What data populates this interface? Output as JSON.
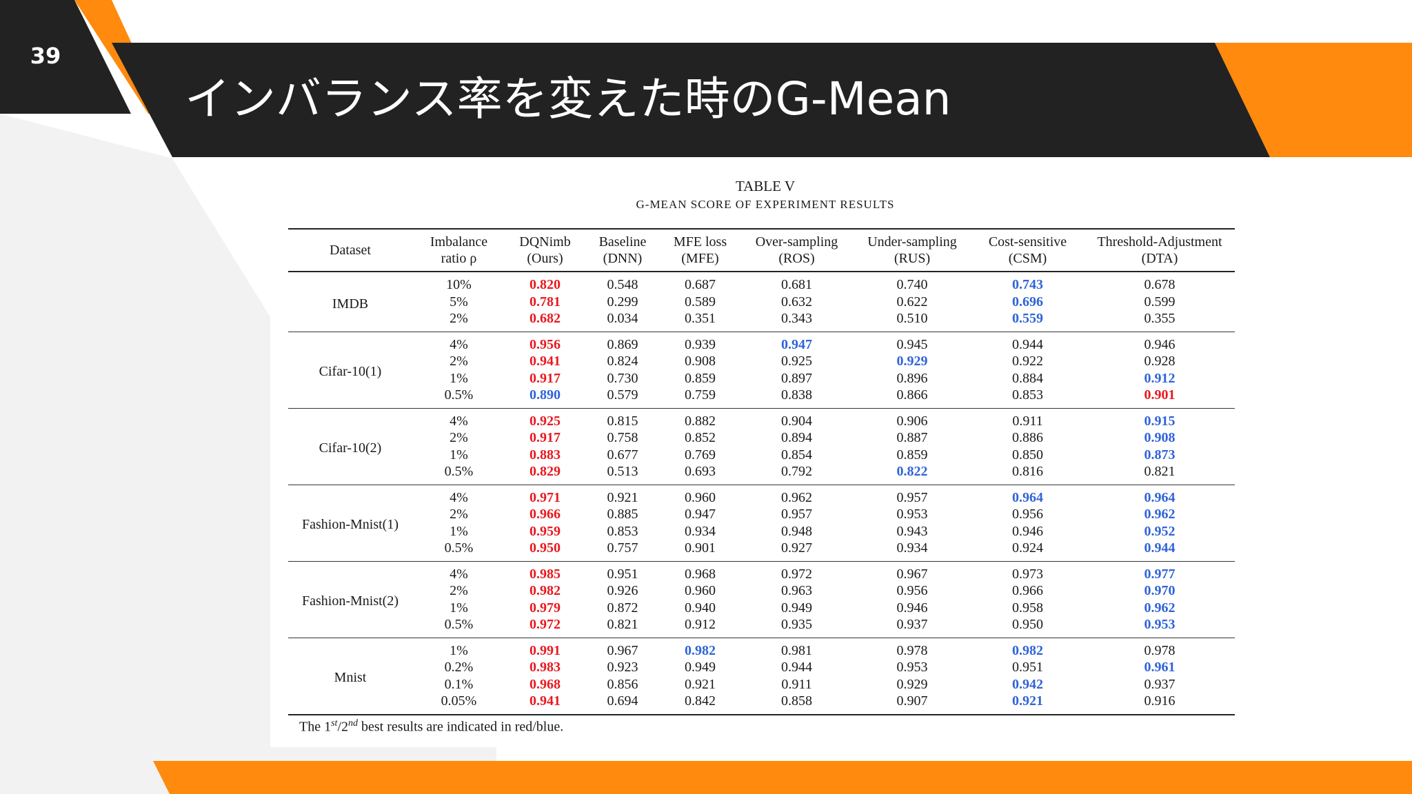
{
  "slide": {
    "page_number": "39",
    "title": "インバランス率を変えた時のG-Mean"
  },
  "colors": {
    "dark_band": "#222222",
    "accent_orange": "#ff8a0d",
    "panel_grey": "#f2f2f2",
    "best_red": "#e8191f",
    "second_blue": "#2f63d8"
  },
  "table": {
    "caption_line1": "TABLE V",
    "caption_line2": "G-MEAN SCORE OF EXPERIMENT RESULTS",
    "headers": [
      [
        "Dataset",
        ""
      ],
      [
        "Imbalance",
        "ratio ρ"
      ],
      [
        "DQNimb",
        "(Ours)"
      ],
      [
        "Baseline",
        "(DNN)"
      ],
      [
        "MFE loss",
        "(MFE)"
      ],
      [
        "Over-sampling",
        "(ROS)"
      ],
      [
        "Under-sampling",
        "(RUS)"
      ],
      [
        "Cost-sensitive",
        "(CSM)"
      ],
      [
        "Threshold-Adjustment",
        "(DTA)"
      ]
    ],
    "groups": [
      {
        "name": "IMDB",
        "rows": [
          {
            "ratio": "10%",
            "v": [
              "0.820",
              "0.548",
              "0.687",
              "0.681",
              "0.740",
              "0.743",
              "0.678"
            ],
            "best": 0,
            "second": 5
          },
          {
            "ratio": "5%",
            "v": [
              "0.781",
              "0.299",
              "0.589",
              "0.632",
              "0.622",
              "0.696",
              "0.599"
            ],
            "best": 0,
            "second": 5
          },
          {
            "ratio": "2%",
            "v": [
              "0.682",
              "0.034",
              "0.351",
              "0.343",
              "0.510",
              "0.559",
              "0.355"
            ],
            "best": 0,
            "second": 5
          }
        ]
      },
      {
        "name": "Cifar-10(1)",
        "rows": [
          {
            "ratio": "4%",
            "v": [
              "0.956",
              "0.869",
              "0.939",
              "0.947",
              "0.945",
              "0.944",
              "0.946"
            ],
            "best": 0,
            "second": 3
          },
          {
            "ratio": "2%",
            "v": [
              "0.941",
              "0.824",
              "0.908",
              "0.925",
              "0.929",
              "0.922",
              "0.928"
            ],
            "best": 0,
            "second": 4
          },
          {
            "ratio": "1%",
            "v": [
              "0.917",
              "0.730",
              "0.859",
              "0.897",
              "0.896",
              "0.884",
              "0.912"
            ],
            "best": 0,
            "second": 6
          },
          {
            "ratio": "0.5%",
            "v": [
              "0.890",
              "0.579",
              "0.759",
              "0.838",
              "0.866",
              "0.853",
              "0.901"
            ],
            "best": 6,
            "second": 0
          }
        ]
      },
      {
        "name": "Cifar-10(2)",
        "rows": [
          {
            "ratio": "4%",
            "v": [
              "0.925",
              "0.815",
              "0.882",
              "0.904",
              "0.906",
              "0.911",
              "0.915"
            ],
            "best": 0,
            "second": 6
          },
          {
            "ratio": "2%",
            "v": [
              "0.917",
              "0.758",
              "0.852",
              "0.894",
              "0.887",
              "0.886",
              "0.908"
            ],
            "best": 0,
            "second": 6
          },
          {
            "ratio": "1%",
            "v": [
              "0.883",
              "0.677",
              "0.769",
              "0.854",
              "0.859",
              "0.850",
              "0.873"
            ],
            "best": 0,
            "second": 6
          },
          {
            "ratio": "0.5%",
            "v": [
              "0.829",
              "0.513",
              "0.693",
              "0.792",
              "0.822",
              "0.816",
              "0.821"
            ],
            "best": 0,
            "second": 4
          }
        ]
      },
      {
        "name": "Fashion-Mnist(1)",
        "rows": [
          {
            "ratio": "4%",
            "v": [
              "0.971",
              "0.921",
              "0.960",
              "0.962",
              "0.957",
              "0.964",
              "0.964"
            ],
            "best": 0,
            "second": [
              5,
              6
            ]
          },
          {
            "ratio": "2%",
            "v": [
              "0.966",
              "0.885",
              "0.947",
              "0.957",
              "0.953",
              "0.956",
              "0.962"
            ],
            "best": 0,
            "second": 6
          },
          {
            "ratio": "1%",
            "v": [
              "0.959",
              "0.853",
              "0.934",
              "0.948",
              "0.943",
              "0.946",
              "0.952"
            ],
            "best": 0,
            "second": 6
          },
          {
            "ratio": "0.5%",
            "v": [
              "0.950",
              "0.757",
              "0.901",
              "0.927",
              "0.934",
              "0.924",
              "0.944"
            ],
            "best": 0,
            "second": 6
          }
        ]
      },
      {
        "name": "Fashion-Mnist(2)",
        "rows": [
          {
            "ratio": "4%",
            "v": [
              "0.985",
              "0.951",
              "0.968",
              "0.972",
              "0.967",
              "0.973",
              "0.977"
            ],
            "best": 0,
            "second": 6
          },
          {
            "ratio": "2%",
            "v": [
              "0.982",
              "0.926",
              "0.960",
              "0.963",
              "0.956",
              "0.966",
              "0.970"
            ],
            "best": 0,
            "second": 6
          },
          {
            "ratio": "1%",
            "v": [
              "0.979",
              "0.872",
              "0.940",
              "0.949",
              "0.946",
              "0.958",
              "0.962"
            ],
            "best": 0,
            "second": 6
          },
          {
            "ratio": "0.5%",
            "v": [
              "0.972",
              "0.821",
              "0.912",
              "0.935",
              "0.937",
              "0.950",
              "0.953"
            ],
            "best": 0,
            "second": 6
          }
        ]
      },
      {
        "name": "Mnist",
        "rows": [
          {
            "ratio": "1%",
            "v": [
              "0.991",
              "0.967",
              "0.982",
              "0.981",
              "0.978",
              "0.982",
              "0.978"
            ],
            "best": 0,
            "second": [
              2,
              5
            ]
          },
          {
            "ratio": "0.2%",
            "v": [
              "0.983",
              "0.923",
              "0.949",
              "0.944",
              "0.953",
              "0.951",
              "0.961"
            ],
            "best": 0,
            "second": 6
          },
          {
            "ratio": "0.1%",
            "v": [
              "0.968",
              "0.856",
              "0.921",
              "0.911",
              "0.929",
              "0.942",
              "0.937"
            ],
            "best": 0,
            "second": 5
          },
          {
            "ratio": "0.05%",
            "v": [
              "0.941",
              "0.694",
              "0.842",
              "0.858",
              "0.907",
              "0.921",
              "0.916"
            ],
            "best": 0,
            "second": 5
          }
        ]
      }
    ],
    "note_prefix": "The 1",
    "note_sup1": "st",
    "note_mid": "/2",
    "note_sup2": "nd",
    "note_suffix": " best results are indicated in red/blue."
  }
}
